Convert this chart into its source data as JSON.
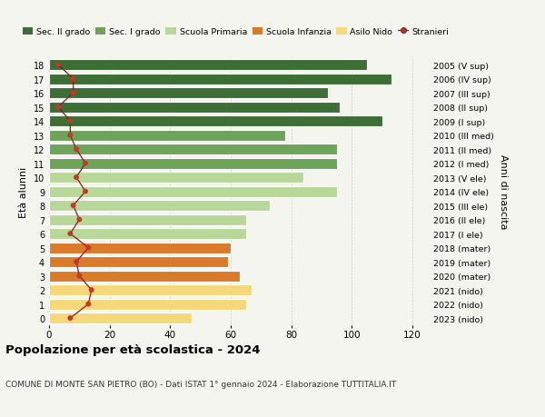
{
  "ages": [
    18,
    17,
    16,
    15,
    14,
    13,
    12,
    11,
    10,
    9,
    8,
    7,
    6,
    5,
    4,
    3,
    2,
    1,
    0
  ],
  "bar_values": [
    105,
    113,
    92,
    96,
    110,
    78,
    95,
    95,
    84,
    95,
    73,
    65,
    65,
    60,
    59,
    63,
    67,
    65,
    47
  ],
  "stranieri_values": [
    3,
    8,
    8,
    3,
    7,
    7,
    9,
    12,
    9,
    12,
    8,
    10,
    7,
    13,
    9,
    10,
    14,
    13,
    7
  ],
  "right_labels": [
    "2005 (V sup)",
    "2006 (IV sup)",
    "2007 (III sup)",
    "2008 (II sup)",
    "2009 (I sup)",
    "2010 (III med)",
    "2011 (II med)",
    "2012 (I med)",
    "2013 (V ele)",
    "2014 (IV ele)",
    "2015 (III ele)",
    "2016 (II ele)",
    "2017 (I ele)",
    "2018 (mater)",
    "2019 (mater)",
    "2020 (mater)",
    "2021 (nido)",
    "2022 (nido)",
    "2023 (nido)"
  ],
  "bar_colors": [
    "#3d6e35",
    "#3d6e35",
    "#3d6e35",
    "#3d6e35",
    "#3d6e35",
    "#6ea35a",
    "#6ea35a",
    "#6ea35a",
    "#b8d89a",
    "#b8d89a",
    "#b8d89a",
    "#b8d89a",
    "#b8d89a",
    "#d97b2a",
    "#d97b2a",
    "#d97b2a",
    "#f5d87a",
    "#f5d87a",
    "#f5d87a"
  ],
  "legend_labels": [
    "Sec. II grado",
    "Sec. I grado",
    "Scuola Primaria",
    "Scuola Infanzia",
    "Asilo Nido",
    "Stranieri"
  ],
  "legend_colors": [
    "#3d6e35",
    "#6ea35a",
    "#b8d89a",
    "#d97b2a",
    "#f5d87a",
    "#c0392b"
  ],
  "stranieri_color": "#c0392b",
  "stranieri_line_color": "#8b1a1a",
  "ylabel": "Età alunni",
  "right_ylabel": "Anni di nascita",
  "title": "Popolazione per età scolastica - 2024",
  "subtitle": "COMUNE DI MONTE SAN PIETRO (BO) - Dati ISTAT 1° gennaio 2024 - Elaborazione TUTTITALIA.IT",
  "xlim": [
    0,
    126
  ],
  "background_color": "#f5f5f0",
  "grid_color": "#cccccc"
}
